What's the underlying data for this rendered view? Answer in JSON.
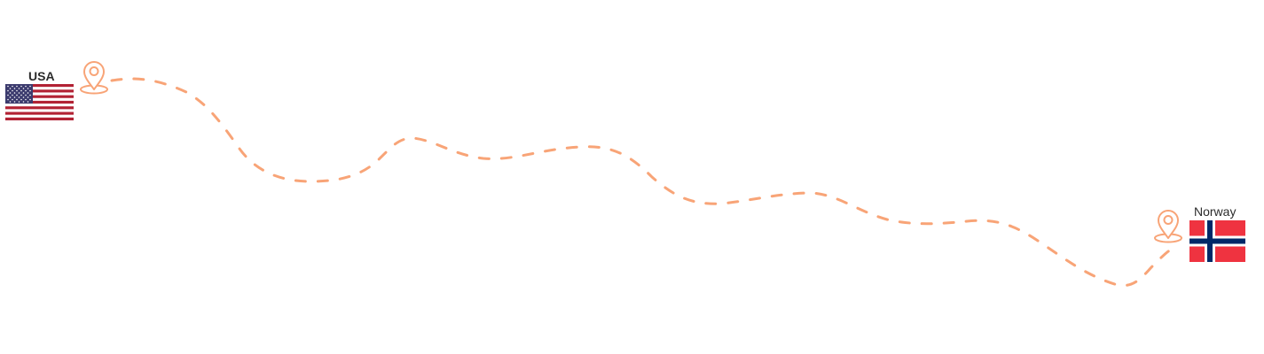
{
  "origin": {
    "country": "USA",
    "flag_icon": "usa-flag-icon",
    "marker_icon": "location-pin-icon"
  },
  "destination": {
    "country": "Norway",
    "flag_icon": "norway-flag-icon",
    "marker_icon": "location-pin-icon"
  },
  "route": {
    "style": "dashed",
    "color": "#f8a477"
  },
  "colors": {
    "accent": "#f8a477",
    "usa_red": "#b22234",
    "usa_blue": "#3c3b6e",
    "norway_red": "#ef3340",
    "norway_blue": "#002868"
  }
}
